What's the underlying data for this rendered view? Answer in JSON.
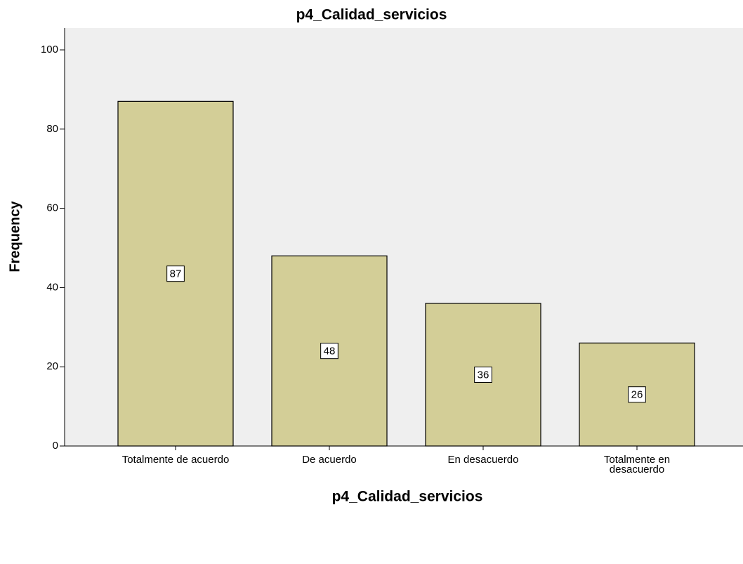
{
  "chart_data": {
    "type": "bar",
    "title": "p4_Calidad_servicios",
    "x_label": "p4_Calidad_servicios",
    "y_label": "Frequency",
    "categories": [
      "Totalmente de acuerdo",
      "De acuerdo",
      "En desacuerdo",
      "Totalmente en desacuerdo"
    ],
    "values": [
      87,
      48,
      36,
      26
    ],
    "color": "#d3ce97",
    "ylim": [
      0,
      105.5
    ],
    "yticks": [
      0,
      20,
      40,
      60,
      80,
      100
    ],
    "grid": false
  }
}
